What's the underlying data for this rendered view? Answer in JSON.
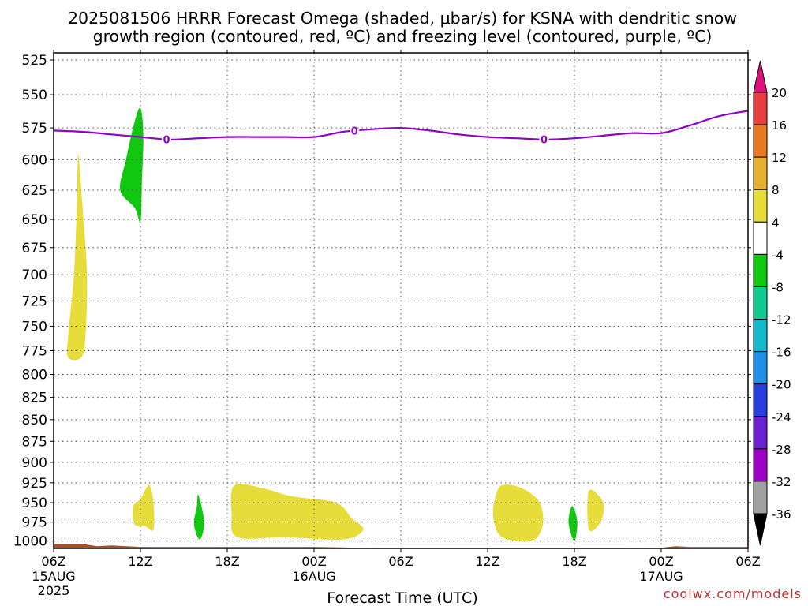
{
  "chart_data": {
    "type": "heatmap",
    "title_line1": "2025081506 HRRR Forecast Omega (shaded, μbar/s) for KSNA with dendritic snow",
    "title_line2": "growth region (contoured, red, ºC) and freezing level (contoured, purple, ºC)",
    "xlabel": "Forecast Time (UTC)",
    "watermark": "coolwx.com/models",
    "x_range_hours": [
      0,
      48
    ],
    "y_range_hPa": [
      520,
      1010
    ],
    "y_scale": "log-pressure",
    "grid": true,
    "x_ticks": [
      {
        "hour": 0,
        "label": "06Z",
        "date": "15AUG",
        "year": "2025"
      },
      {
        "hour": 6,
        "label": "12Z",
        "date": "",
        "year": ""
      },
      {
        "hour": 12,
        "label": "18Z",
        "date": "",
        "year": ""
      },
      {
        "hour": 18,
        "label": "00Z",
        "date": "16AUG",
        "year": ""
      },
      {
        "hour": 24,
        "label": "06Z",
        "date": "",
        "year": ""
      },
      {
        "hour": 30,
        "label": "12Z",
        "date": "",
        "year": ""
      },
      {
        "hour": 36,
        "label": "18Z",
        "date": "",
        "year": ""
      },
      {
        "hour": 42,
        "label": "00Z",
        "date": "17AUG",
        "year": ""
      },
      {
        "hour": 48,
        "label": "06Z",
        "date": "",
        "year": ""
      }
    ],
    "y_ticks": [
      "525",
      "550",
      "575",
      "600",
      "625",
      "650",
      "675",
      "700",
      "725",
      "750",
      "775",
      "800",
      "825",
      "850",
      "875",
      "900",
      "925",
      "950",
      "975",
      "1000"
    ],
    "colorbar": {
      "colors": [
        "#000000",
        "#a0a0a0",
        "#9e00c8",
        "#6a22d2",
        "#2a3ee0",
        "#1f8fe8",
        "#14b8c8",
        "#10c890",
        "#10c810",
        "#ffffff",
        "#e6dc3a",
        "#e6b030",
        "#e87b22",
        "#e84040",
        "#e0107e"
      ],
      "labels": [
        "-36",
        "-32",
        "-28",
        "-24",
        "-20",
        "-16",
        "-12",
        "-8",
        "-4",
        "4",
        "8",
        "12",
        "16",
        "20"
      ]
    },
    "freezing_level": {
      "label": "0",
      "color": "#9000c8",
      "points": [
        [
          0,
          577
        ],
        [
          2,
          578
        ],
        [
          4,
          580
        ],
        [
          6,
          582
        ],
        [
          8,
          584
        ],
        [
          10,
          583
        ],
        [
          12,
          582
        ],
        [
          14,
          582
        ],
        [
          16,
          582
        ],
        [
          18,
          582
        ],
        [
          20,
          578
        ],
        [
          22,
          576
        ],
        [
          24,
          575
        ],
        [
          26,
          577
        ],
        [
          28,
          580
        ],
        [
          30,
          582
        ],
        [
          32,
          583
        ],
        [
          34,
          584
        ],
        [
          36,
          583
        ],
        [
          38,
          581
        ],
        [
          40,
          579
        ],
        [
          42,
          579
        ],
        [
          44,
          573
        ],
        [
          46,
          566
        ],
        [
          48,
          562
        ]
      ],
      "label_hours": [
        7.8,
        20.8,
        33.9
      ]
    },
    "surface_pressure": {
      "color": "#a0522d",
      "points": [
        [
          0,
          1004
        ],
        [
          2,
          1004
        ],
        [
          3,
          1007
        ],
        [
          4,
          1006
        ],
        [
          6,
          1008
        ],
        [
          12,
          1008
        ],
        [
          18,
          1008
        ],
        [
          21,
          1009
        ],
        [
          24,
          1010
        ],
        [
          36,
          1010
        ],
        [
          42,
          1009
        ],
        [
          43,
          1007
        ],
        [
          44,
          1008
        ],
        [
          48,
          1008
        ]
      ]
    },
    "omega_regions": [
      {
        "category": "4 to 8",
        "color": "#e6dc3a",
        "points": [
          [
            1.7,
            596
          ],
          [
            2.0,
            640
          ],
          [
            2.3,
            700
          ],
          [
            2.2,
            760
          ],
          [
            1.9,
            782
          ],
          [
            1.0,
            782
          ],
          [
            1.0,
            760
          ],
          [
            1.4,
            700
          ],
          [
            1.6,
            640
          ]
        ]
      },
      {
        "category": "-4 to -8",
        "color": "#10c810",
        "points": [
          [
            6.0,
            560
          ],
          [
            6.2,
            580
          ],
          [
            6.1,
            620
          ],
          [
            6.0,
            652
          ],
          [
            5.6,
            640
          ],
          [
            4.6,
            625
          ],
          [
            5.0,
            600
          ],
          [
            5.6,
            570
          ]
        ]
      },
      {
        "category": "4 to 8",
        "color": "#e6dc3a",
        "points": [
          [
            6.6,
            928
          ],
          [
            6.9,
            950
          ],
          [
            6.9,
            985
          ],
          [
            6.3,
            980
          ],
          [
            5.6,
            978
          ],
          [
            5.5,
            955
          ],
          [
            6.0,
            945
          ]
        ]
      },
      {
        "category": "-4 to -8",
        "color": "#10c810",
        "points": [
          [
            10.0,
            940
          ],
          [
            10.4,
            975
          ],
          [
            10.1,
            998
          ],
          [
            9.7,
            978
          ],
          [
            9.9,
            955
          ]
        ]
      },
      {
        "category": "4 to 8",
        "color": "#e6dc3a",
        "points": [
          [
            12.5,
            928
          ],
          [
            14.5,
            932
          ],
          [
            16.5,
            942
          ],
          [
            19.5,
            950
          ],
          [
            20.6,
            970
          ],
          [
            21.4,
            985
          ],
          [
            20.0,
            998
          ],
          [
            16.0,
            995
          ],
          [
            12.7,
            995
          ],
          [
            12.3,
            965
          ]
        ]
      },
      {
        "category": "4 to 8",
        "color": "#e6dc3a",
        "points": [
          [
            31.0,
            928
          ],
          [
            32.4,
            932
          ],
          [
            33.6,
            950
          ],
          [
            33.8,
            980
          ],
          [
            33.0,
            1000
          ],
          [
            31.0,
            995
          ],
          [
            30.4,
            970
          ],
          [
            30.5,
            945
          ]
        ]
      },
      {
        "category": "-4 to -8",
        "color": "#10c810",
        "points": [
          [
            35.9,
            955
          ],
          [
            36.2,
            975
          ],
          [
            36.0,
            1000
          ],
          [
            35.6,
            978
          ],
          [
            35.7,
            960
          ]
        ]
      },
      {
        "category": "4 to 8",
        "color": "#e6dc3a",
        "points": [
          [
            37.0,
            935
          ],
          [
            38.0,
            950
          ],
          [
            37.8,
            975
          ],
          [
            37.0,
            985
          ]
        ]
      }
    ]
  }
}
